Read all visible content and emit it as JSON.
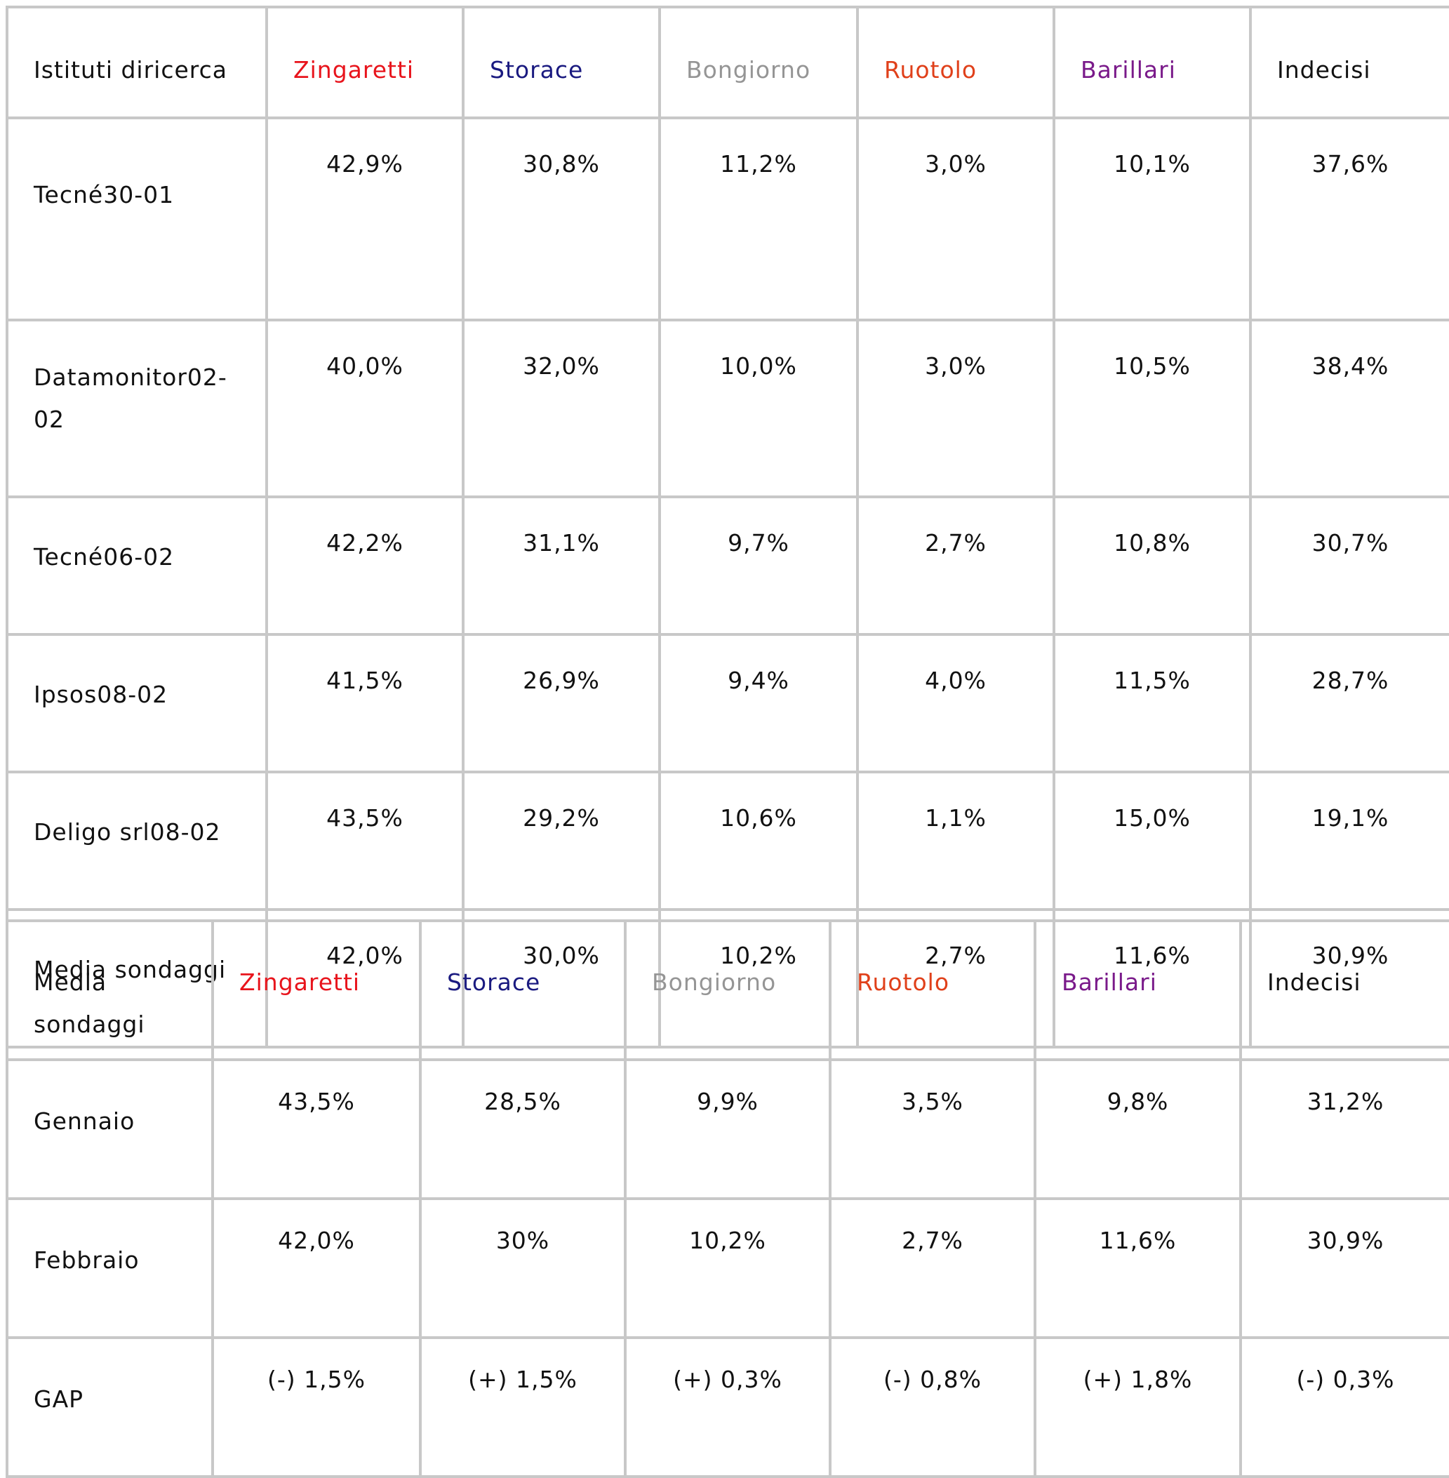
{
  "table1": {
    "header": {
      "first": "Istituti diricerca",
      "candidates": [
        "Zingaretti",
        "Storace",
        "Bongiorno",
        "Ruotolo",
        "Barillari",
        "Indecisi"
      ]
    },
    "rows": [
      {
        "label": "Tecné30-01",
        "values": [
          "42,9%",
          "30,8%",
          "11,2%",
          "3,0%",
          "10,1%",
          "37,6%"
        ]
      },
      {
        "label": "Datamonitor02-02",
        "values": [
          "40,0%",
          "32,0%",
          "10,0%",
          "3,0%",
          "10,5%",
          "38,4%"
        ]
      },
      {
        "label": "Tecné06-02",
        "values": [
          "42,2%",
          "31,1%",
          "9,7%",
          "2,7%",
          "10,8%",
          "30,7%"
        ]
      },
      {
        "label": "Ipsos08-02",
        "values": [
          "41,5%",
          "26,9%",
          "9,4%",
          "4,0%",
          "11,5%",
          "28,7%"
        ]
      },
      {
        "label": "Deligo srl08-02",
        "values": [
          "43,5%",
          "29,2%",
          "10,6%",
          "1,1%",
          "15,0%",
          "19,1%"
        ]
      },
      {
        "label": "Media sondaggi",
        "values": [
          "42,0%",
          "30,0%",
          "10,2%",
          "2,7%",
          "11,6%",
          "30,9%"
        ]
      }
    ]
  },
  "table2": {
    "header": {
      "first": "Media sondaggi",
      "candidates": [
        "Zingaretti",
        "Storace",
        "Bongiorno",
        "Ruotolo",
        "Barillari",
        "Indecisi"
      ]
    },
    "rows": [
      {
        "label": "Gennaio",
        "values": [
          "43,5%",
          "28,5%",
          "9,9%",
          "3,5%",
          "9,8%",
          "31,2%"
        ]
      },
      {
        "label": "Febbraio",
        "values": [
          "42,0%",
          "30%",
          "10,2%",
          "2,7%",
          "11,6%",
          "30,9%"
        ]
      },
      {
        "label": "GAP",
        "values": [
          "(-) 1,5%",
          "(+) 1,5%",
          "(+) 0,3%",
          "(-) 0,8%",
          "(+) 1,8%",
          "(-) 0,3%"
        ]
      }
    ]
  },
  "colors": {
    "Zingaretti": "#e8141c",
    "Storace": "#1a1a80",
    "Bongiorno": "#959595",
    "Ruotolo": "#e0401a",
    "Barillari": "#7a1a8a",
    "Indecisi": "#111111",
    "border": "#c8c8c8"
  }
}
